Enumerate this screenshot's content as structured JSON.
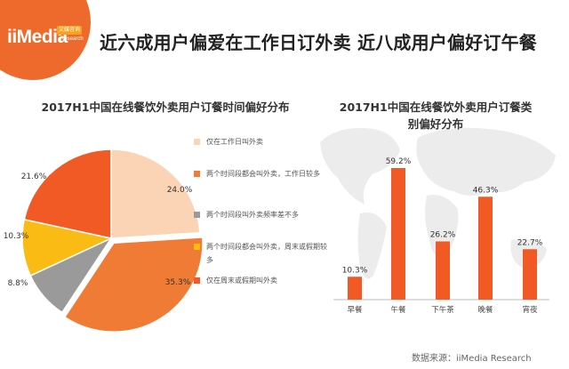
{
  "brand": {
    "logo_text": "iiMedia",
    "logo_badge": "艾媒咨询",
    "logo_sub": "Research",
    "accent": "#ee6a2c"
  },
  "headline": "近六成用户偏爱在工作日订外卖  近八成用户偏好订午餐",
  "source": "数据来源：iiMedia Research",
  "chart_data": [
    {
      "type": "pie",
      "title": "2017H1中国在线餐饮外卖用户订餐时间偏好分布",
      "slices": [
        {
          "label": "仅在工作日叫外卖",
          "value": 24.0,
          "value_label": "24.0%",
          "color": "#fbd3b5"
        },
        {
          "label": "两个时间段都会叫外卖，工作日较多",
          "value": 35.3,
          "value_label": "35.3%",
          "color": "#ef7b35"
        },
        {
          "label": "两个时间段叫外卖频率差不多",
          "value": 8.8,
          "value_label": "8.8%",
          "color": "#9a9a9a"
        },
        {
          "label": "两个时间段都会叫外卖，周末或假期较多",
          "value": 10.3,
          "value_label": "10.3%",
          "color": "#f9bb14"
        },
        {
          "label": "仅在周末或假期叫外卖",
          "value": 21.6,
          "value_label": "21.6%",
          "color": "#f15a24"
        }
      ],
      "legend_position": "right"
    },
    {
      "type": "bar",
      "title": "2017H1中国在线餐饮外卖用户订餐类别偏好分布",
      "categories": [
        "早餐",
        "午餐",
        "下午茶",
        "晚餐",
        "宵夜"
      ],
      "values": [
        10.3,
        59.2,
        26.2,
        46.3,
        22.7
      ],
      "value_labels": [
        "10.3%",
        "59.2%",
        "26.2%",
        "46.3%",
        "22.7%"
      ],
      "color": "#f15a24",
      "ylim": [
        0,
        65
      ]
    }
  ]
}
